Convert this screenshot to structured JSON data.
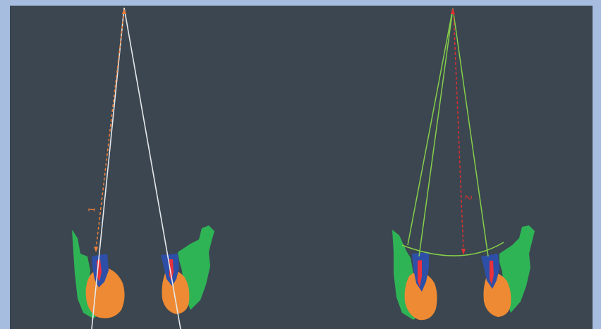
{
  "panels": [
    {
      "id": "left",
      "measurement_label": "1",
      "measurement_color": "#ee7f3a"
    },
    {
      "id": "right",
      "measurement_label": "2",
      "measurement_color": "#e03030"
    }
  ],
  "colors": {
    "background": "#3b4650",
    "border": "#a6bde0",
    "bone": "#2fb455",
    "tooth_crown": "#2e4fa8",
    "root_canal": "#e8323c",
    "orange_region": "#ee8a33",
    "ray_white": "#e6e9ec",
    "ray_green": "#86cf4a"
  }
}
